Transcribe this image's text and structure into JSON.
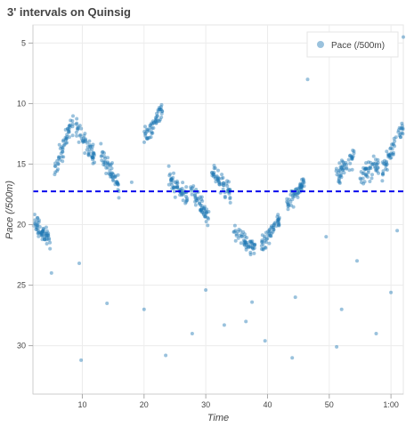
{
  "chart_data": {
    "type": "scatter",
    "title": "3' intervals on Quinsig",
    "xlabel": "Time",
    "ylabel": "Pace (/500m)",
    "xlim": [
      2,
      62
    ],
    "ylim": [
      34,
      3.5
    ],
    "y_inverted": true,
    "grid": true,
    "legend_position": "top-right",
    "x_ticks": [
      10,
      20,
      30,
      40,
      50,
      60
    ],
    "x_tick_labels": [
      "10",
      "20",
      "30",
      "40",
      "50",
      "1:00"
    ],
    "y_ticks": [
      5,
      10,
      15,
      20,
      25,
      30
    ],
    "y_tick_labels": [
      "5",
      "10",
      "15",
      "20",
      "25",
      "30"
    ],
    "series": [
      {
        "name": "Pace (/500m)",
        "color": "#1f77b4",
        "clusters": [
          {
            "x_start": 2,
            "x_end": 4.8,
            "y_start": 19.5,
            "y_end": 21.5,
            "spread": 1.2,
            "n": 60
          },
          {
            "x_start": 5.5,
            "x_end": 8.5,
            "y_start": 15.5,
            "y_end": 11.5,
            "spread": 1.5,
            "n": 55
          },
          {
            "x_start": 9,
            "x_end": 12,
            "y_start": 12,
            "y_end": 14.5,
            "spread": 1.3,
            "n": 55
          },
          {
            "x_start": 13,
            "x_end": 16,
            "y_start": 14,
            "y_end": 17,
            "spread": 1.4,
            "n": 55
          },
          {
            "x_start": 20,
            "x_end": 23,
            "y_start": 13,
            "y_end": 10.5,
            "spread": 1.4,
            "n": 55
          },
          {
            "x_start": 24,
            "x_end": 27,
            "y_start": 16,
            "y_end": 18,
            "spread": 1.3,
            "n": 55
          },
          {
            "x_start": 27.5,
            "x_end": 30.5,
            "y_start": 17,
            "y_end": 19.5,
            "spread": 1.3,
            "n": 55
          },
          {
            "x_start": 31,
            "x_end": 34,
            "y_start": 15.5,
            "y_end": 17.5,
            "spread": 1.4,
            "n": 55
          },
          {
            "x_start": 34.5,
            "x_end": 38,
            "y_start": 20.5,
            "y_end": 22,
            "spread": 1.1,
            "n": 55
          },
          {
            "x_start": 39,
            "x_end": 42,
            "y_start": 21.5,
            "y_end": 19.5,
            "spread": 1.2,
            "n": 55
          },
          {
            "x_start": 43,
            "x_end": 46,
            "y_start": 18.5,
            "y_end": 16.5,
            "spread": 1.1,
            "n": 55
          },
          {
            "x_start": 51,
            "x_end": 54,
            "y_start": 16,
            "y_end": 14.5,
            "spread": 1.4,
            "n": 50
          },
          {
            "x_start": 55,
            "x_end": 58,
            "y_start": 16,
            "y_end": 15,
            "spread": 1.3,
            "n": 50
          },
          {
            "x_start": 58.5,
            "x_end": 62,
            "y_start": 15.5,
            "y_end": 12,
            "spread": 1.3,
            "n": 55
          }
        ],
        "outliers": [
          {
            "x": 62,
            "y": 4.5
          },
          {
            "x": 46.5,
            "y": 8
          },
          {
            "x": 9.8,
            "y": 31.2
          },
          {
            "x": 14,
            "y": 26.5
          },
          {
            "x": 20,
            "y": 27
          },
          {
            "x": 23.5,
            "y": 30.8
          },
          {
            "x": 27.8,
            "y": 29
          },
          {
            "x": 33,
            "y": 28.3
          },
          {
            "x": 36.5,
            "y": 28
          },
          {
            "x": 39.6,
            "y": 29.6
          },
          {
            "x": 44,
            "y": 31
          },
          {
            "x": 44.5,
            "y": 26
          },
          {
            "x": 51.2,
            "y": 30.1
          },
          {
            "x": 52,
            "y": 27
          },
          {
            "x": 57.6,
            "y": 29
          },
          {
            "x": 60,
            "y": 25.6
          },
          {
            "x": 54.5,
            "y": 23
          },
          {
            "x": 5,
            "y": 24
          },
          {
            "x": 9.5,
            "y": 23.2
          },
          {
            "x": 30,
            "y": 25.4
          },
          {
            "x": 37.5,
            "y": 26.4
          },
          {
            "x": 61,
            "y": 20.5
          },
          {
            "x": 49.5,
            "y": 21
          },
          {
            "x": 18,
            "y": 16.5
          }
        ]
      }
    ],
    "reference_line": {
      "y": 17.25,
      "color": "#0000ee",
      "style": "dashed"
    }
  }
}
